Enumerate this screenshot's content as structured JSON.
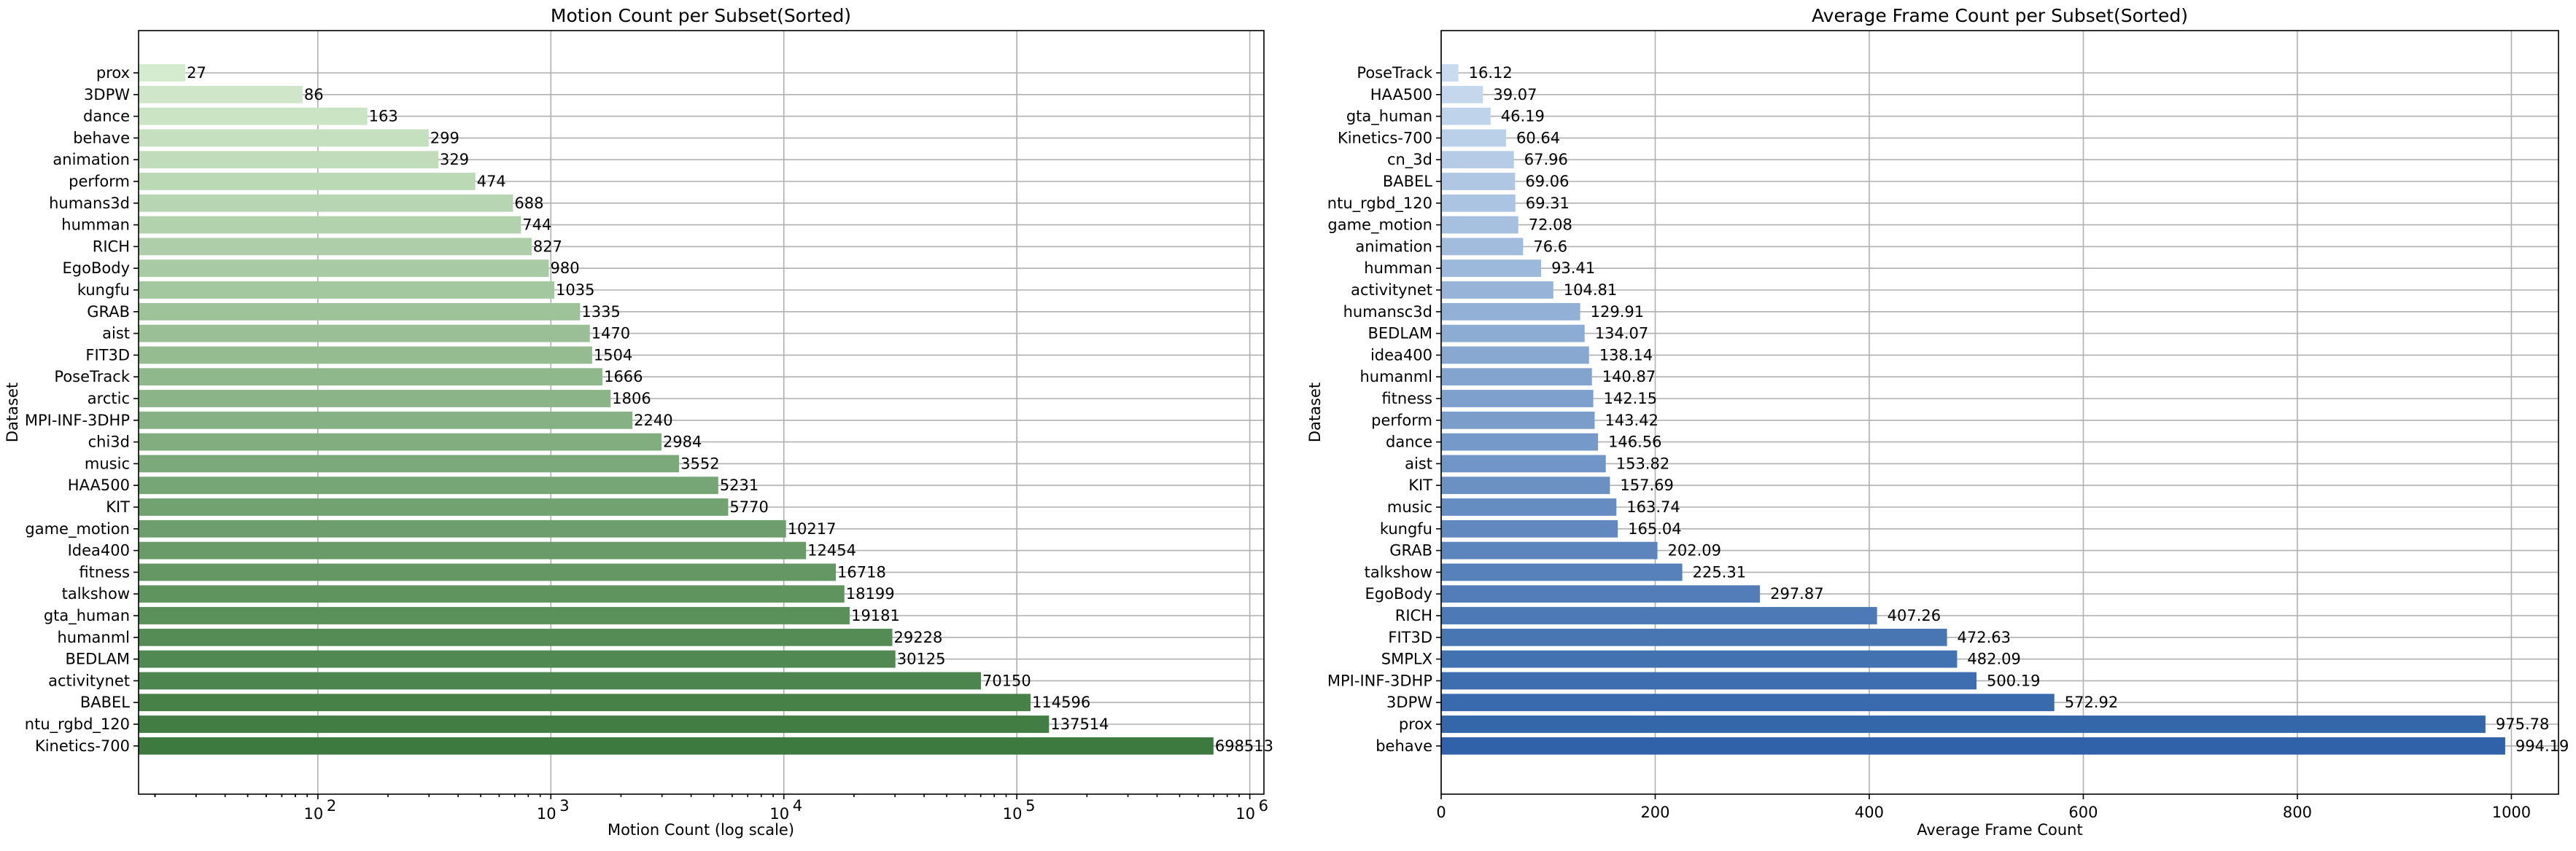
{
  "chart_data": [
    {
      "type": "bar",
      "orientation": "horizontal",
      "title": "Motion Count per Subset(Sorted)",
      "xlabel": "Motion Count (log scale)",
      "ylabel": "Dataset",
      "x_scale": "log",
      "xlim": [
        17,
        1150000
      ],
      "x_ticks": [
        {
          "value": 100,
          "base": "10",
          "exp": "2"
        },
        {
          "value": 1000,
          "base": "10",
          "exp": "3"
        },
        {
          "value": 10000,
          "base": "10",
          "exp": "4"
        },
        {
          "value": 100000,
          "base": "10",
          "exp": "5"
        },
        {
          "value": 1000000,
          "base": "10",
          "exp": "6"
        }
      ],
      "grid": true,
      "color_scale": [
        "#d4ebcd",
        "#3d7a3f"
      ],
      "categories": [
        "prox",
        "3DPW",
        "dance",
        "behave",
        "animation",
        "perform",
        "humans3d",
        "humman",
        "RICH",
        "EgoBody",
        "kungfu",
        "GRAB",
        "aist",
        "FIT3D",
        "PoseTrack",
        "arctic",
        "MPI-INF-3DHP",
        "chi3d",
        "music",
        "HAA500",
        "KIT",
        "game_motion",
        "Idea400",
        "fitness",
        "talkshow",
        "gta_human",
        "humanml",
        "BEDLAM",
        "activitynet",
        "BABEL",
        "ntu_rgbd_120",
        "Kinetics-700"
      ],
      "values": [
        27,
        86,
        163,
        299,
        329,
        474,
        688,
        744,
        827,
        980,
        1035,
        1335,
        1470,
        1504,
        1666,
        1806,
        2240,
        2984,
        3552,
        5231,
        5770,
        10217,
        12454,
        16718,
        18199,
        19181,
        29228,
        30125,
        70150,
        114596,
        137514,
        698513
      ],
      "labels": [
        "27",
        "86",
        "163",
        "299",
        "329",
        "474",
        "688",
        "744",
        "827",
        "980",
        "1035",
        "1335",
        "1470",
        "1504",
        "1666",
        "1806",
        "2240",
        "2984",
        "3552",
        "5231",
        "5770",
        "10217",
        "12454",
        "16718",
        "18199",
        "19181",
        "29228",
        "30125",
        "70150",
        "114596",
        "137514",
        "698513"
      ]
    },
    {
      "type": "bar",
      "orientation": "horizontal",
      "title": "Average Frame Count per Subset(Sorted)",
      "xlabel": "Average Frame Count",
      "ylabel": "Dataset",
      "x_scale": "linear",
      "xlim": [
        0,
        1044
      ],
      "x_ticks": [
        {
          "value": 0,
          "label": "0"
        },
        {
          "value": 200,
          "label": "200"
        },
        {
          "value": 400,
          "label": "400"
        },
        {
          "value": 600,
          "label": "600"
        },
        {
          "value": 800,
          "label": "800"
        },
        {
          "value": 1000,
          "label": "1000"
        }
      ],
      "grid": true,
      "color_scale": [
        "#c9dbef",
        "#2f62a8"
      ],
      "categories": [
        "PoseTrack",
        "HAA500",
        "gta_human",
        "Kinetics-700",
        "cn_3d",
        "BABEL",
        "ntu_rgbd_120",
        "game_motion",
        "animation",
        "humman",
        "activitynet",
        "humansc3d",
        "BEDLAM",
        "idea400",
        "humanml",
        "fitness",
        "perform",
        "dance",
        "aist",
        "KIT",
        "music",
        "kungfu",
        "GRAB",
        "talkshow",
        "EgoBody",
        "RICH",
        "FIT3D",
        "SMPLX",
        "MPI-INF-3DHP",
        "3DPW",
        "prox",
        "behave"
      ],
      "values": [
        16.12,
        39.07,
        46.19,
        60.64,
        67.96,
        69.06,
        69.31,
        72.08,
        76.6,
        93.41,
        104.81,
        129.91,
        134.07,
        138.14,
        140.87,
        142.15,
        143.42,
        146.56,
        153.82,
        157.69,
        163.74,
        165.04,
        202.09,
        225.31,
        297.87,
        407.26,
        472.63,
        482.09,
        500.19,
        572.92,
        975.78,
        994.19
      ],
      "labels": [
        "16.12",
        "39.07",
        "46.19",
        "60.64",
        "67.96",
        "69.06",
        "69.31",
        "72.08",
        "76.6",
        "93.41",
        "104.81",
        "129.91",
        "134.07",
        "138.14",
        "140.87",
        "142.15",
        "143.42",
        "146.56",
        "153.82",
        "157.69",
        "163.74",
        "165.04",
        "202.09",
        "225.31",
        "297.87",
        "407.26",
        "472.63",
        "482.09",
        "500.19",
        "572.92",
        "975.78",
        "994.19"
      ]
    }
  ]
}
